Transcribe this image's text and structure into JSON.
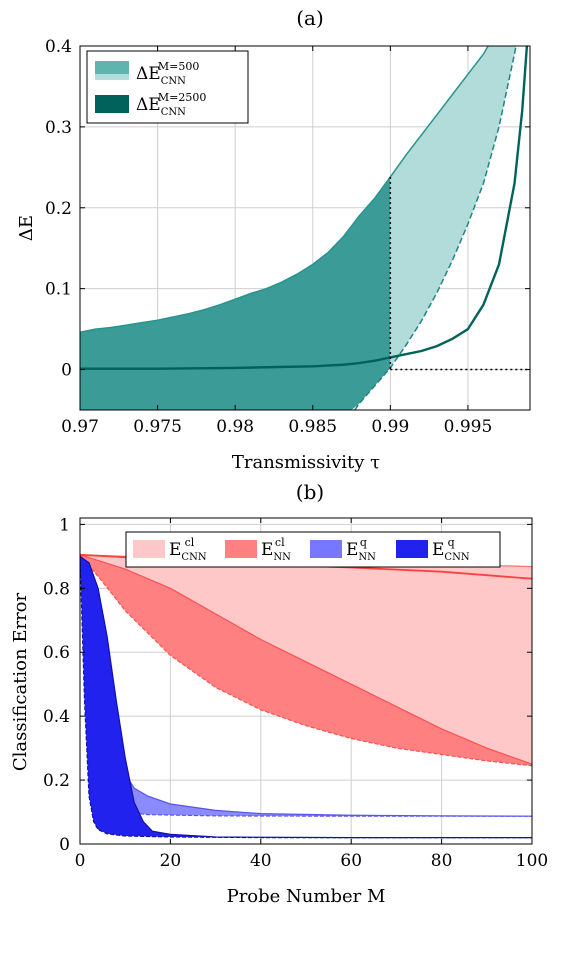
{
  "chart_data": [
    {
      "type": "area",
      "label": "(a)",
      "xlabel": "Transmissivity τ",
      "ylabel": "ΔE",
      "xlim": [
        0.97,
        0.999
      ],
      "ylim": [
        -0.05,
        0.4
      ],
      "xticks": [
        "0.97",
        "0.975",
        "0.98",
        "0.985",
        "0.99",
        "0.995"
      ],
      "xtick_values": [
        0.97,
        0.975,
        0.98,
        0.985,
        0.99,
        0.995
      ],
      "yticks": [
        "0",
        "0.1",
        "0.2",
        "0.3",
        "0.4"
      ],
      "ytick_values": [
        0,
        0.1,
        0.2,
        0.3,
        0.4
      ],
      "grid": true,
      "legend_position": "top-left",
      "legend": [
        {
          "base": "ΔE",
          "sup": "M=500",
          "sub": "CNN",
          "color": "#5fb4b0"
        },
        {
          "base": "ΔE",
          "sup": "M=2500",
          "sub": "CNN",
          "color": "#00625b"
        }
      ],
      "annotations": {
        "vline_x": 0.99,
        "hline_y": 0
      },
      "series": [
        {
          "name": "M=500 upper",
          "color": "#2a938e",
          "points": [
            [
              0.97,
              0.046
            ],
            [
              0.971,
              0.05
            ],
            [
              0.972,
              0.052
            ],
            [
              0.973,
              0.055
            ],
            [
              0.974,
              0.058
            ],
            [
              0.975,
              0.061
            ],
            [
              0.976,
              0.065
            ],
            [
              0.977,
              0.069
            ],
            [
              0.978,
              0.074
            ],
            [
              0.979,
              0.08
            ],
            [
              0.98,
              0.087
            ],
            [
              0.981,
              0.094
            ],
            [
              0.982,
              0.1
            ],
            [
              0.983,
              0.108
            ],
            [
              0.984,
              0.118
            ],
            [
              0.985,
              0.13
            ],
            [
              0.986,
              0.145
            ],
            [
              0.987,
              0.165
            ],
            [
              0.988,
              0.19
            ],
            [
              0.989,
              0.212
            ],
            [
              0.99,
              0.238
            ],
            [
              0.991,
              0.265
            ],
            [
              0.992,
              0.29
            ],
            [
              0.993,
              0.315
            ],
            [
              0.994,
              0.34
            ],
            [
              0.995,
              0.365
            ],
            [
              0.996,
              0.39
            ],
            [
              0.9963,
              0.4
            ]
          ]
        },
        {
          "name": "M=500 lower",
          "color": "#2a938e",
          "points": [
            [
              0.9877,
              -0.05
            ],
            [
              0.988,
              -0.042
            ],
            [
              0.989,
              -0.02
            ],
            [
              0.99,
              0.002
            ],
            [
              0.991,
              0.03
            ],
            [
              0.992,
              0.06
            ],
            [
              0.993,
              0.095
            ],
            [
              0.994,
              0.135
            ],
            [
              0.995,
              0.18
            ],
            [
              0.996,
              0.23
            ],
            [
              0.997,
              0.3
            ],
            [
              0.9975,
              0.345
            ],
            [
              0.998,
              0.39
            ],
            [
              0.9981,
              0.4
            ]
          ]
        },
        {
          "name": "M=2500",
          "color": "#00625b",
          "points": [
            [
              0.97,
              0.001
            ],
            [
              0.975,
              0.001
            ],
            [
              0.98,
              0.002
            ],
            [
              0.985,
              0.004
            ],
            [
              0.987,
              0.006
            ],
            [
              0.988,
              0.008
            ],
            [
              0.989,
              0.011
            ],
            [
              0.99,
              0.015
            ],
            [
              0.991,
              0.019
            ],
            [
              0.992,
              0.023
            ],
            [
              0.993,
              0.029
            ],
            [
              0.994,
              0.038
            ],
            [
              0.995,
              0.05
            ],
            [
              0.996,
              0.08
            ],
            [
              0.997,
              0.13
            ],
            [
              0.998,
              0.23
            ],
            [
              0.9985,
              0.32
            ],
            [
              0.9988,
              0.4
            ]
          ]
        }
      ]
    },
    {
      "type": "area",
      "label": "(b)",
      "xlabel": "Probe Number M",
      "ylabel": "Classification Error",
      "xlim": [
        0,
        100
      ],
      "ylim": [
        0,
        1.02
      ],
      "xticks": [
        "0",
        "20",
        "40",
        "60",
        "80",
        "100"
      ],
      "xtick_values": [
        0,
        20,
        40,
        60,
        80,
        100
      ],
      "yticks": [
        "0",
        "0.2",
        "0.4",
        "0.6",
        "0.8",
        "1"
      ],
      "ytick_values": [
        0,
        0.2,
        0.4,
        0.6,
        0.8,
        1
      ],
      "grid": true,
      "legend_position": "top-center",
      "legend": [
        {
          "base": "E",
          "sup": "cl",
          "sub": "CNN",
          "color": "#ffc8c8"
        },
        {
          "base": "E",
          "sup": "cl",
          "sub": "NN",
          "color": "#ff8080"
        },
        {
          "base": "E",
          "sup": "q",
          "sub": "NN",
          "color": "#7777ff"
        },
        {
          "base": "E",
          "sup": "q",
          "sub": "CNN",
          "color": "#2222ee"
        }
      ],
      "series": [
        {
          "name": "classical CNN band",
          "fill": "#ffc8c8",
          "upper": [
            [
              0,
              0.905
            ],
            [
              10,
              0.9
            ],
            [
              20,
              0.896
            ],
            [
              40,
              0.89
            ],
            [
              60,
              0.883
            ],
            [
              80,
              0.876
            ],
            [
              100,
              0.868
            ]
          ],
          "lower": [
            [
              0,
              0.905
            ],
            [
              10,
              0.82
            ],
            [
              20,
              0.72
            ],
            [
              30,
              0.6
            ],
            [
              40,
              0.5
            ],
            [
              50,
              0.43
            ],
            [
              60,
              0.37
            ],
            [
              70,
              0.33
            ],
            [
              80,
              0.29
            ],
            [
              90,
              0.265
            ],
            [
              100,
              0.245
            ]
          ]
        },
        {
          "name": "classical NN band",
          "fill": "#ff8080",
          "upper": [
            [
              0,
              0.905
            ],
            [
              10,
              0.86
            ],
            [
              20,
              0.8
            ],
            [
              30,
              0.72
            ],
            [
              40,
              0.64
            ],
            [
              50,
              0.57
            ],
            [
              60,
              0.5
            ],
            [
              70,
              0.43
            ],
            [
              80,
              0.36
            ],
            [
              90,
              0.3
            ],
            [
              100,
              0.25
            ]
          ],
          "lower": [
            [
              0,
              0.905
            ],
            [
              5,
              0.82
            ],
            [
              10,
              0.73
            ],
            [
              20,
              0.59
            ],
            [
              30,
              0.49
            ],
            [
              40,
              0.42
            ],
            [
              50,
              0.37
            ],
            [
              60,
              0.33
            ],
            [
              70,
              0.3
            ],
            [
              80,
              0.28
            ],
            [
              90,
              0.26
            ],
            [
              100,
              0.245
            ]
          ],
          "line": [
            [
              0,
              0.905
            ],
            [
              20,
              0.89
            ],
            [
              40,
              0.875
            ],
            [
              60,
              0.865
            ],
            [
              80,
              0.852
            ],
            [
              100,
              0.83
            ]
          ],
          "line_color": "#ff4040"
        },
        {
          "name": "quantum NN band",
          "fill": "#7777ff",
          "upper": [
            [
              0,
              0.9
            ],
            [
              2,
              0.86
            ],
            [
              4,
              0.74
            ],
            [
              6,
              0.55
            ],
            [
              8,
              0.36
            ],
            [
              10,
              0.22
            ],
            [
              12,
              0.175
            ],
            [
              15,
              0.15
            ],
            [
              20,
              0.125
            ],
            [
              30,
              0.105
            ],
            [
              40,
              0.095
            ],
            [
              60,
              0.09
            ],
            [
              80,
              0.088
            ],
            [
              100,
              0.087
            ]
          ],
          "lower": [
            [
              0,
              0.9
            ],
            [
              1,
              0.6
            ],
            [
              2,
              0.32
            ],
            [
              3,
              0.2
            ],
            [
              4,
              0.15
            ],
            [
              6,
              0.12
            ],
            [
              10,
              0.1
            ],
            [
              15,
              0.092
            ],
            [
              30,
              0.088
            ],
            [
              60,
              0.087
            ],
            [
              100,
              0.087
            ]
          ]
        },
        {
          "name": "quantum CNN band",
          "fill": "#2222ee",
          "upper": [
            [
              0,
              0.9
            ],
            [
              2,
              0.88
            ],
            [
              4,
              0.8
            ],
            [
              6,
              0.65
            ],
            [
              8,
              0.45
            ],
            [
              10,
              0.27
            ],
            [
              12,
              0.13
            ],
            [
              14,
              0.07
            ],
            [
              16,
              0.04
            ],
            [
              20,
              0.03
            ],
            [
              30,
              0.022
            ],
            [
              60,
              0.02
            ],
            [
              100,
              0.02
            ]
          ],
          "lower": [
            [
              0,
              0.9
            ],
            [
              1,
              0.45
            ],
            [
              2,
              0.15
            ],
            [
              3,
              0.07
            ],
            [
              4,
              0.045
            ],
            [
              6,
              0.032
            ],
            [
              10,
              0.025
            ],
            [
              20,
              0.022
            ],
            [
              40,
              0.02
            ],
            [
              100,
              0.02
            ]
          ]
        }
      ]
    }
  ]
}
